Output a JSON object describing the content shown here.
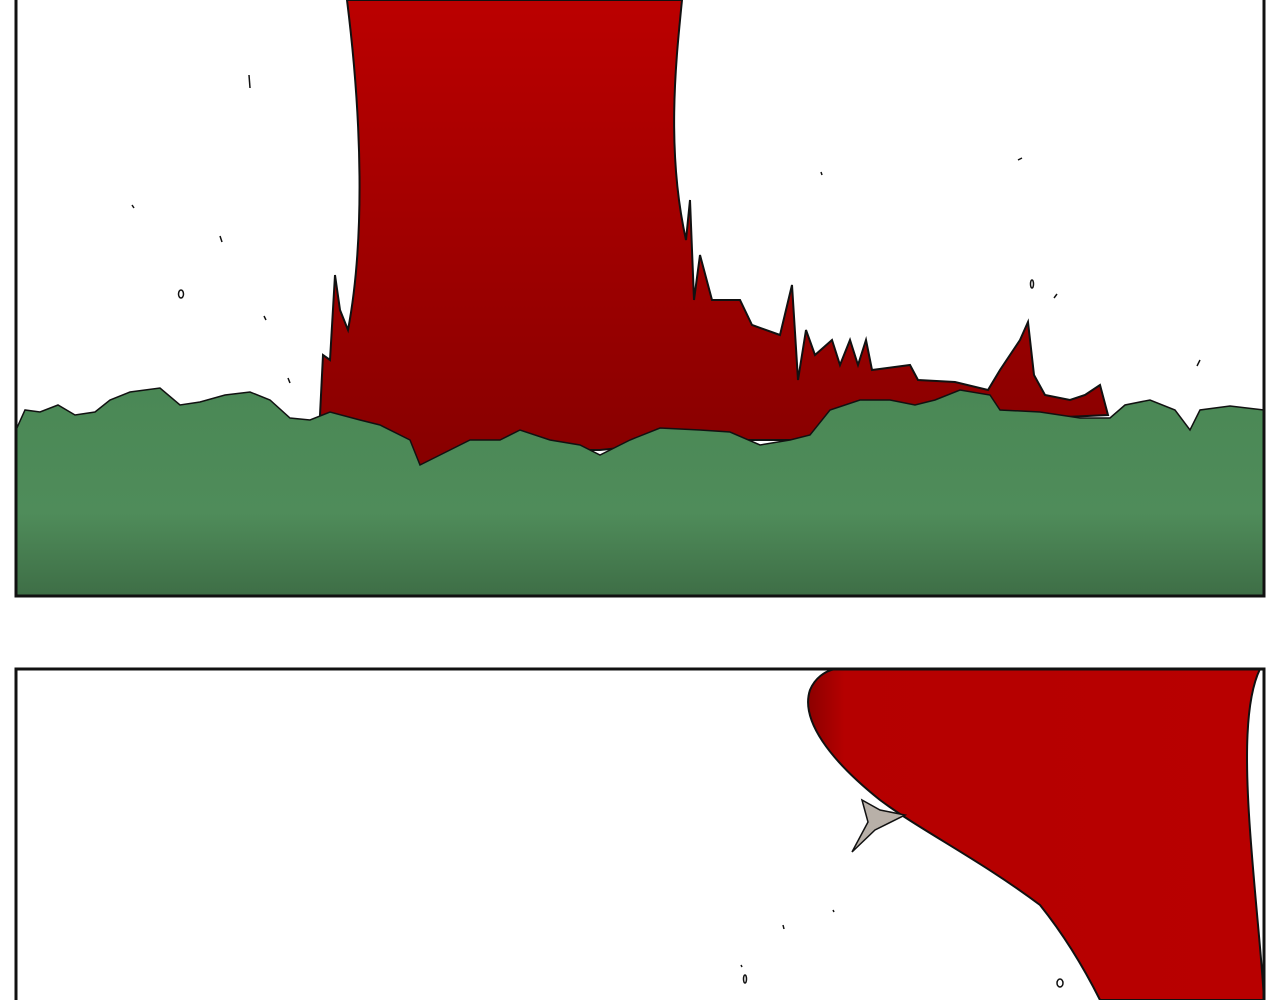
{
  "colors": {
    "background": "#ffffff",
    "blood_red": "#b00000",
    "blood_dark": "#8a0000",
    "grass_green": "#4d8a57",
    "grass_dark": "#3f7047",
    "outline": "#111111",
    "shard_gray": "#b8b0a8"
  },
  "panels": [
    {
      "name": "panel-top",
      "description_visible_text": ""
    },
    {
      "name": "panel-bottom",
      "description_visible_text": ""
    }
  ]
}
